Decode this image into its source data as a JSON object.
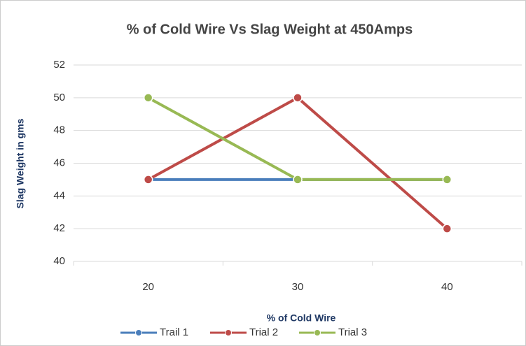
{
  "chart_data": {
    "type": "line",
    "title": "% of Cold  Wire Vs Slag Weight at 450Amps",
    "x_label": "% of Cold  Wire",
    "y_label": "Slag Weight in gms",
    "categories": [
      "20",
      "30",
      "40"
    ],
    "series": [
      {
        "name": "Trail 1",
        "color": "#4a7ebb",
        "values": [
          45,
          45,
          45
        ]
      },
      {
        "name": "Trial 2",
        "color": "#be4b48",
        "values": [
          45,
          50,
          42
        ]
      },
      {
        "name": "Trial 3",
        "color": "#98b954",
        "values": [
          50,
          45,
          45
        ]
      }
    ],
    "ylim": [
      40,
      52
    ],
    "yticks": [
      40,
      42,
      44,
      46,
      48,
      50,
      52
    ],
    "grid": true,
    "legend": "bottom"
  }
}
